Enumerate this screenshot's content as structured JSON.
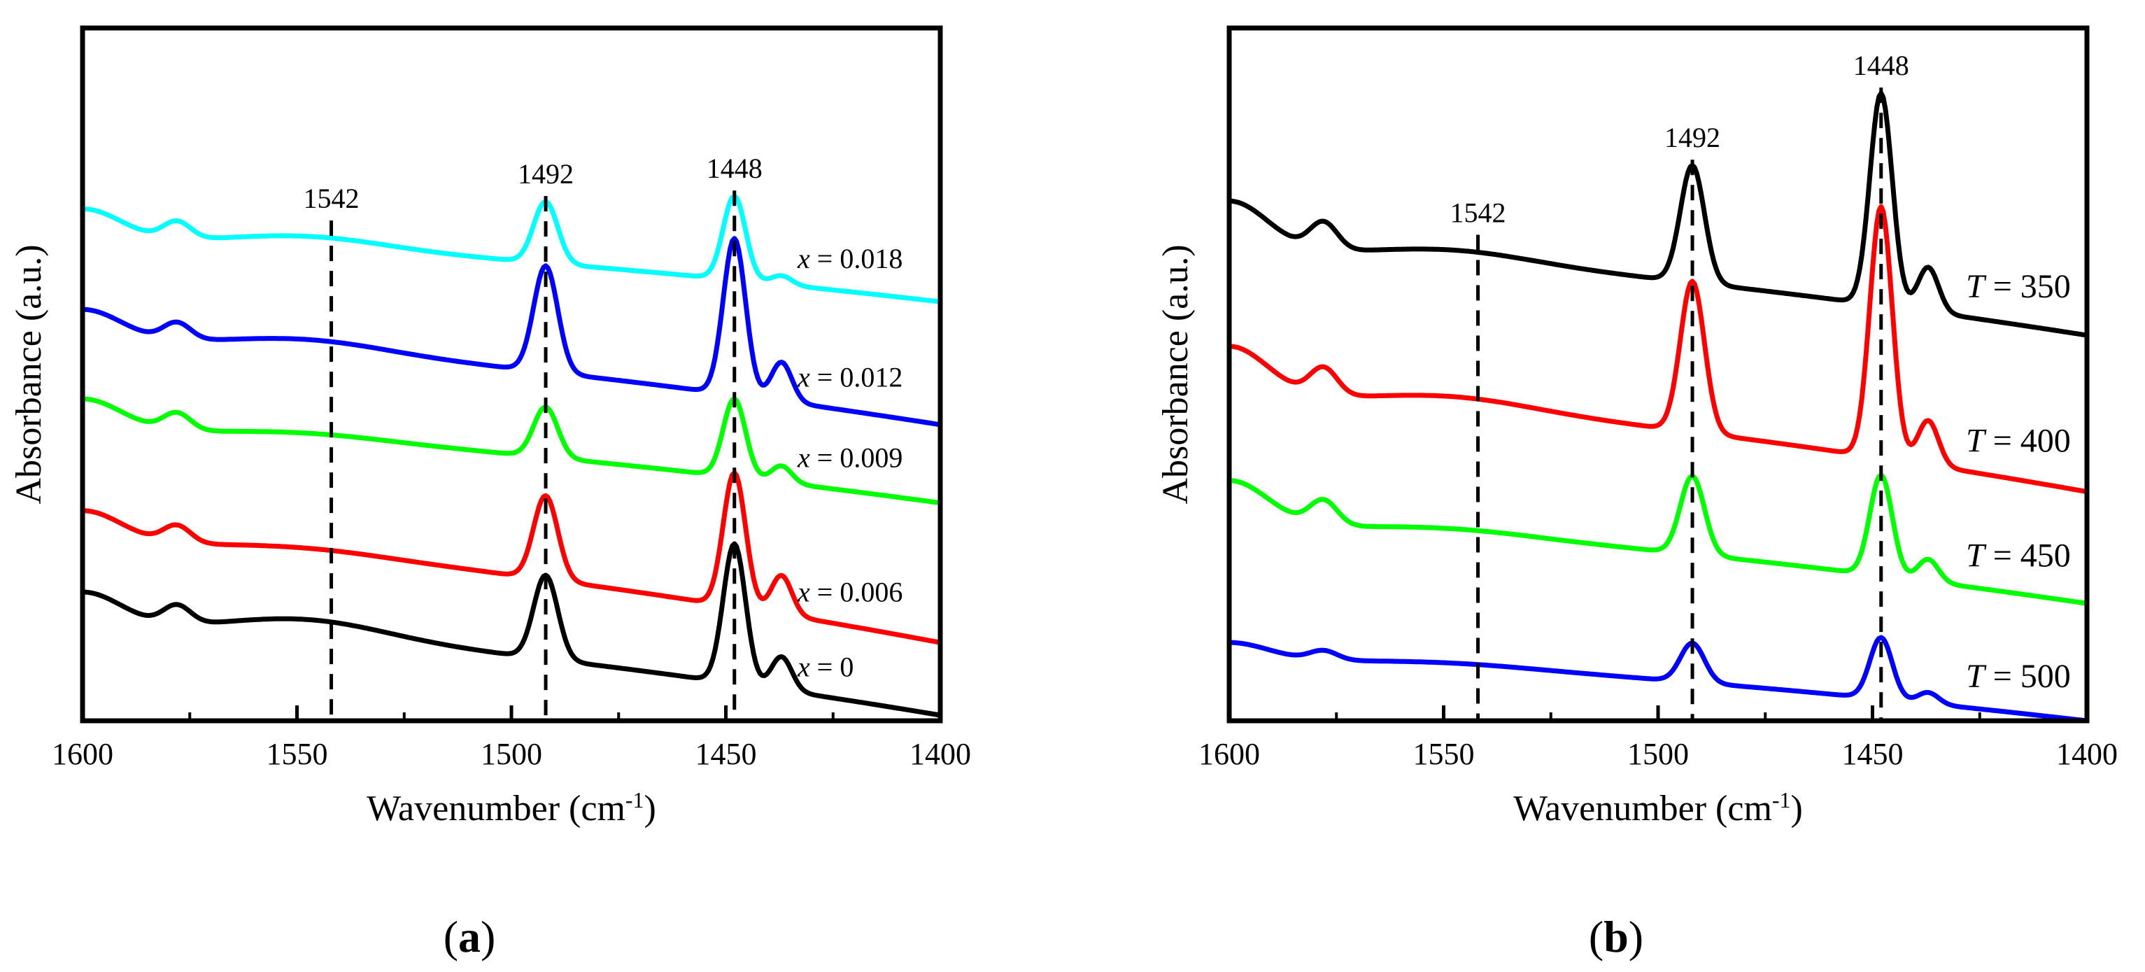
{
  "chart_data": [
    {
      "type": "line",
      "panel": "(a)",
      "panel_letter": "a",
      "xlabel": "Wavenumber (cm",
      "xlabel_sup": "-1",
      "ylabel": "Absorbance (a.u.)",
      "xlim": [
        1600,
        1400
      ],
      "xticks": [
        1600,
        1550,
        1500,
        1450,
        1400
      ],
      "y_units": "arbitrary (offset curves)",
      "reference_lines": [
        {
          "label": "1542",
          "x": 1542
        },
        {
          "label": "1492",
          "x": 1492
        },
        {
          "label": "1448",
          "x": 1448
        }
      ],
      "series": [
        {
          "name": "x = 0.018",
          "var": "x",
          "value": "0.018",
          "color": "#00FFFF",
          "base": 4.3,
          "end_delta": -0.55,
          "shoulder": 0.28,
          "peak1492": 0.55,
          "peak1448": 0.75,
          "peak1437": 0.08,
          "hump": 0.1
        },
        {
          "name": "x = 0.012",
          "var": "x",
          "value": "0.012",
          "color": "#0000FF",
          "base": 3.4,
          "end_delta": -0.75,
          "shoulder": 0.28,
          "peak1492": 0.95,
          "peak1448": 1.4,
          "peak1437": 0.35,
          "hump": 0.1
        },
        {
          "name": "x = 0.009",
          "var": "x",
          "value": "0.009",
          "color": "#00FF00",
          "base": 2.6,
          "end_delta": -0.65,
          "shoulder": 0.28,
          "peak1492": 0.45,
          "peak1448": 0.7,
          "peak1437": 0.15,
          "hump": 0.05
        },
        {
          "name": "x = 0.006",
          "var": "x",
          "value": "0.006",
          "color": "#FF0000",
          "base": 1.6,
          "end_delta": -0.9,
          "shoulder": 0.28,
          "peak1492": 0.75,
          "peak1448": 1.2,
          "peak1437": 0.35,
          "hump": 0.05
        },
        {
          "name": "x = 0",
          "var": "x",
          "value": "0",
          "color": "#000000",
          "base": 0.85,
          "end_delta": -0.8,
          "shoulder": 0.3,
          "peak1492": 0.75,
          "peak1448": 1.25,
          "peak1437": 0.3,
          "hump": 0.15
        }
      ]
    },
    {
      "type": "line",
      "panel": "(b)",
      "panel_letter": "b",
      "xlabel": "Wavenumber (cm",
      "xlabel_sup": "-1",
      "ylabel": "Absorbance (a.u.)",
      "xlim": [
        1600,
        1400
      ],
      "xticks": [
        1600,
        1550,
        1500,
        1450,
        1400
      ],
      "y_units": "arbitrary (offset curves)",
      "reference_lines": [
        {
          "label": "1542",
          "x": 1542
        },
        {
          "label": "1492",
          "x": 1492
        },
        {
          "label": "1448",
          "x": 1448
        }
      ],
      "series": [
        {
          "name": "T = 350",
          "var": "T",
          "value": "350",
          "color": "#000000",
          "base": 4.2,
          "end_delta": -0.75,
          "shoulder": 0.45,
          "peak1492": 1.05,
          "peak1448": 1.9,
          "peak1437": 0.4,
          "hump": 0.1
        },
        {
          "name": "T = 400",
          "var": "T",
          "value": "400",
          "color": "#FF0000",
          "base": 2.9,
          "end_delta": -0.85,
          "shoulder": 0.45,
          "peak1492": 1.35,
          "peak1448": 2.25,
          "peak1437": 0.4,
          "hump": 0.1
        },
        {
          "name": "T = 450",
          "var": "T",
          "value": "450",
          "color": "#00FF00",
          "base": 1.75,
          "end_delta": -0.7,
          "shoulder": 0.4,
          "peak1492": 0.7,
          "peak1448": 0.9,
          "peak1437": 0.2,
          "hump": 0.05
        },
        {
          "name": "T = 500",
          "var": "T",
          "value": "500",
          "color": "#0000FF",
          "base": 0.55,
          "end_delta": -0.55,
          "shoulder": 0.15,
          "peak1492": 0.35,
          "peak1448": 0.55,
          "peak1437": 0.1,
          "hump": 0.03
        }
      ]
    }
  ]
}
